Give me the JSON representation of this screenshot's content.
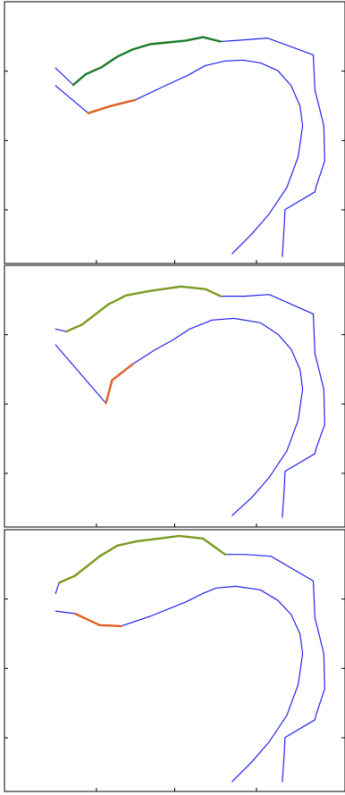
{
  "chart_data": [
    {
      "type": "line",
      "title": "",
      "xlabel": "",
      "ylabel": "",
      "xlim": [
        0,
        386
      ],
      "ylim": [
        0,
        296
      ],
      "grid": false,
      "legend": "none",
      "series": [
        {
          "color": "#2222ee",
          "x": [
            58,
            78,
            92,
            110,
            128,
            145,
            165,
            185,
            205,
            225,
            245,
            272,
            298,
            350,
            352,
            362,
            363,
            353,
            352,
            318,
            317,
            315
          ],
          "y": [
            75,
            94,
            82,
            74,
            62,
            54,
            48,
            46,
            44,
            40,
            45,
            43,
            41,
            60,
            100,
            140,
            180,
            210,
            215,
            235,
            255,
            288
          ]
        },
        {
          "color": "#2222ee",
          "x": [
            58,
            95,
            120,
            148,
            180,
            208,
            228,
            250,
            270,
            290,
            310,
            325,
            335,
            338,
            333,
            320,
            300,
            280,
            258
          ],
          "y": [
            95,
            126,
            118,
            111,
            96,
            83,
            72,
            67,
            66,
            69,
            78,
            95,
            118,
            140,
            175,
            210,
            240,
            263,
            285
          ]
        },
        {
          "color": "#1a7a2a",
          "x": [
            78,
            92,
            110,
            128,
            145,
            165,
            185,
            205,
            225,
            245
          ],
          "y": [
            94,
            82,
            74,
            62,
            54,
            48,
            46,
            44,
            40,
            45
          ]
        },
        {
          "color": "#e06020",
          "x": [
            95,
            120,
            148
          ],
          "y": [
            126,
            118,
            111
          ]
        }
      ]
    },
    {
      "type": "line",
      "title": "",
      "xlabel": "",
      "ylabel": "",
      "xlim": [
        0,
        386
      ],
      "ylim": [
        0,
        296
      ],
      "grid": false,
      "legend": "none",
      "series": [
        {
          "color": "#2222ee",
          "x": [
            58,
            70,
            88,
            118,
            138,
            165,
            200,
            228,
            245,
            272,
            300,
            350,
            352,
            362,
            363,
            353,
            352,
            318,
            317,
            315
          ],
          "y": [
            72,
            75,
            67,
            44,
            34,
            29,
            24,
            27,
            35,
            35,
            33,
            55,
            100,
            140,
            180,
            208,
            213,
            233,
            255,
            285
          ]
        },
        {
          "color": "#2222ee",
          "x": [
            58,
            115,
            122,
            145,
            170,
            190,
            210,
            235,
            260,
            290,
            310,
            325,
            335,
            338,
            333,
            320,
            300,
            280,
            258
          ],
          "y": [
            90,
            156,
            130,
            112,
            96,
            85,
            72,
            62,
            60,
            65,
            78,
            95,
            118,
            140,
            175,
            210,
            240,
            263,
            283
          ]
        },
        {
          "color": "#7a9a20",
          "x": [
            70,
            88,
            118,
            138,
            165,
            200,
            228,
            245
          ],
          "y": [
            75,
            67,
            44,
            34,
            29,
            24,
            27,
            35
          ]
        },
        {
          "color": "#e06020",
          "x": [
            115,
            122,
            145
          ],
          "y": [
            156,
            130,
            112
          ]
        }
      ]
    },
    {
      "type": "line",
      "title": "",
      "xlabel": "",
      "ylabel": "",
      "xlim": [
        0,
        386
      ],
      "ylim": [
        0,
        296
      ],
      "grid": false,
      "legend": "none",
      "series": [
        {
          "color": "#2222ee",
          "x": [
            58,
            62,
            80,
            108,
            128,
            150,
            175,
            198,
            225,
            250,
            272,
            302,
            350,
            352,
            362,
            363,
            353,
            352,
            318,
            317,
            315
          ],
          "y": [
            72,
            60,
            52,
            30,
            18,
            13,
            10,
            7,
            10,
            28,
            28,
            30,
            58,
            100,
            140,
            180,
            210,
            215,
            235,
            255,
            285
          ]
        },
        {
          "color": "#2222ee",
          "x": [
            58,
            80,
            108,
            132,
            165,
            185,
            205,
            225,
            240,
            262,
            290,
            310,
            325,
            335,
            338,
            333,
            320,
            300,
            280,
            258
          ],
          "y": [
            92,
            95,
            108,
            109,
            98,
            90,
            82,
            72,
            66,
            64,
            68,
            80,
            96,
            118,
            140,
            175,
            210,
            240,
            263,
            285
          ]
        },
        {
          "color": "#7a9a20",
          "x": [
            62,
            80,
            108,
            128,
            150,
            175,
            198,
            225,
            250
          ],
          "y": [
            60,
            52,
            30,
            18,
            13,
            10,
            7,
            10,
            28
          ]
        },
        {
          "color": "#e06020",
          "x": [
            80,
            108,
            132
          ],
          "y": [
            95,
            108,
            109
          ]
        }
      ]
    }
  ]
}
